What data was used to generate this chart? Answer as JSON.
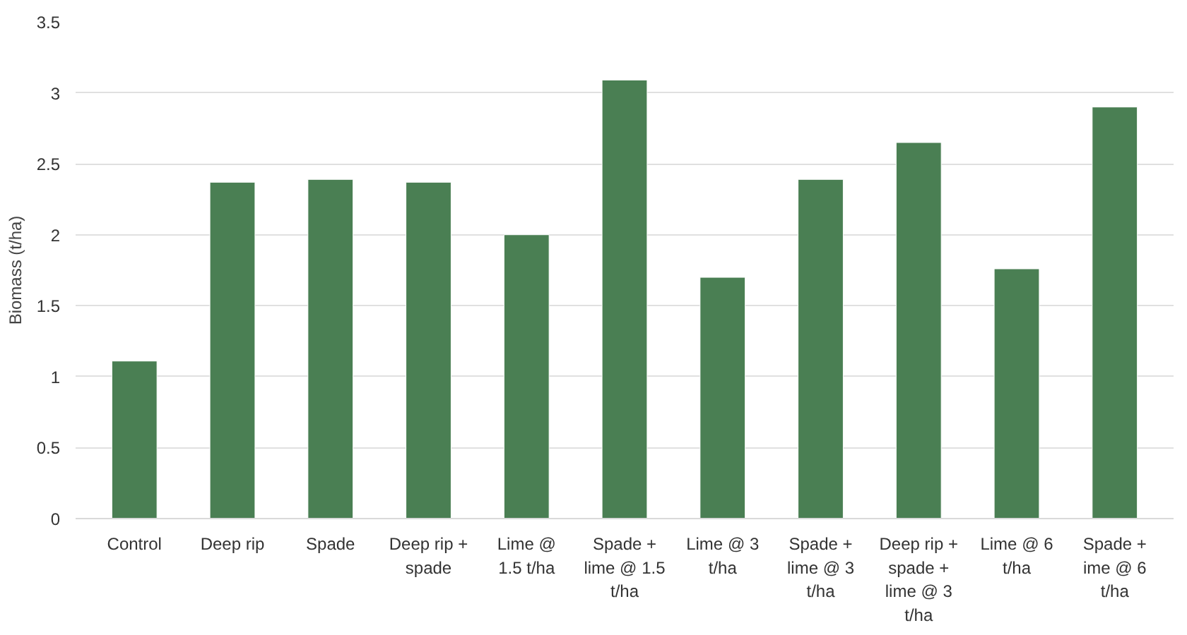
{
  "chart_data": {
    "type": "bar",
    "ylabel": "Biomass (t/ha)",
    "categories": [
      "Control",
      "Deep rip",
      "Spade",
      "Deep rip +\nspade",
      "Lime @\n1.5 t/ha",
      "Spade +\nlime @ 1.5\nt/ha",
      "Lime @ 3\nt/ha",
      "Spade +\nlime @ 3\nt/ha",
      "Deep rip +\nspade +\nlime @ 3\nt/ha",
      "Lime @ 6\nt/ha",
      "Spade +\nime @ 6\nt/ha"
    ],
    "values": [
      1.11,
      2.37,
      2.39,
      2.37,
      2.0,
      3.09,
      1.7,
      2.39,
      2.65,
      1.76,
      2.9
    ],
    "color": "#4a7f53",
    "ylim": [
      0,
      3.5
    ],
    "yticks": [
      0,
      0.5,
      1,
      1.5,
      2,
      2.5,
      3,
      3.5
    ],
    "grid": "y"
  }
}
